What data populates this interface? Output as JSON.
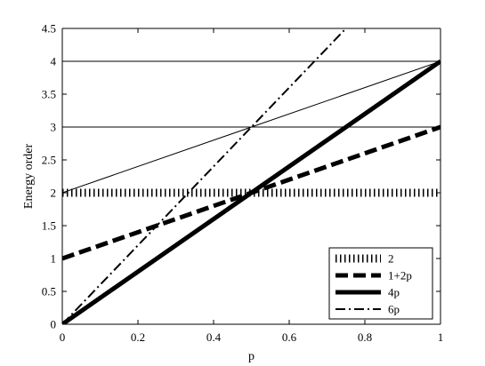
{
  "chart_data": {
    "type": "line",
    "xlabel": "p",
    "ylabel": "Energy order",
    "xlim": [
      0,
      1
    ],
    "ylim": [
      0,
      4.5
    ],
    "x_ticks": [
      {
        "value": 0,
        "label": "0"
      },
      {
        "value": 0.2,
        "label": "0.2"
      },
      {
        "value": 0.4,
        "label": "0.4"
      },
      {
        "value": 0.6,
        "label": "0.6"
      },
      {
        "value": 0.8,
        "label": "0.8"
      },
      {
        "value": 1,
        "label": "1"
      }
    ],
    "y_ticks": [
      {
        "value": 0,
        "label": "0"
      },
      {
        "value": 0.5,
        "label": "0.5"
      },
      {
        "value": 1,
        "label": "1"
      },
      {
        "value": 1.5,
        "label": "1.5"
      },
      {
        "value": 2,
        "label": "2"
      },
      {
        "value": 2.5,
        "label": "2.5"
      },
      {
        "value": 3,
        "label": "3"
      },
      {
        "value": 3.5,
        "label": "3.5"
      },
      {
        "value": 4,
        "label": "4"
      },
      {
        "value": 4.5,
        "label": "4.5"
      }
    ],
    "series": [
      {
        "name": "2",
        "style": "dotted",
        "x": [
          0,
          1
        ],
        "y": [
          2,
          2
        ]
      },
      {
        "name": "1+2p",
        "style": "dashed",
        "x": [
          0,
          1
        ],
        "y": [
          1,
          3
        ]
      },
      {
        "name": "4p",
        "style": "solid-thick",
        "x": [
          0,
          1
        ],
        "y": [
          0,
          4
        ]
      },
      {
        "name": "6p",
        "style": "dashdot",
        "x": [
          0,
          0.75
        ],
        "y": [
          0,
          4.5
        ]
      }
    ],
    "reference_lines": [
      {
        "x": [
          0,
          1
        ],
        "y": [
          3,
          3
        ]
      },
      {
        "x": [
          0,
          1
        ],
        "y": [
          4,
          4
        ]
      },
      {
        "x": [
          0,
          1
        ],
        "y": [
          2,
          4
        ]
      }
    ],
    "legend_position": "bottom-right",
    "grid": false
  }
}
